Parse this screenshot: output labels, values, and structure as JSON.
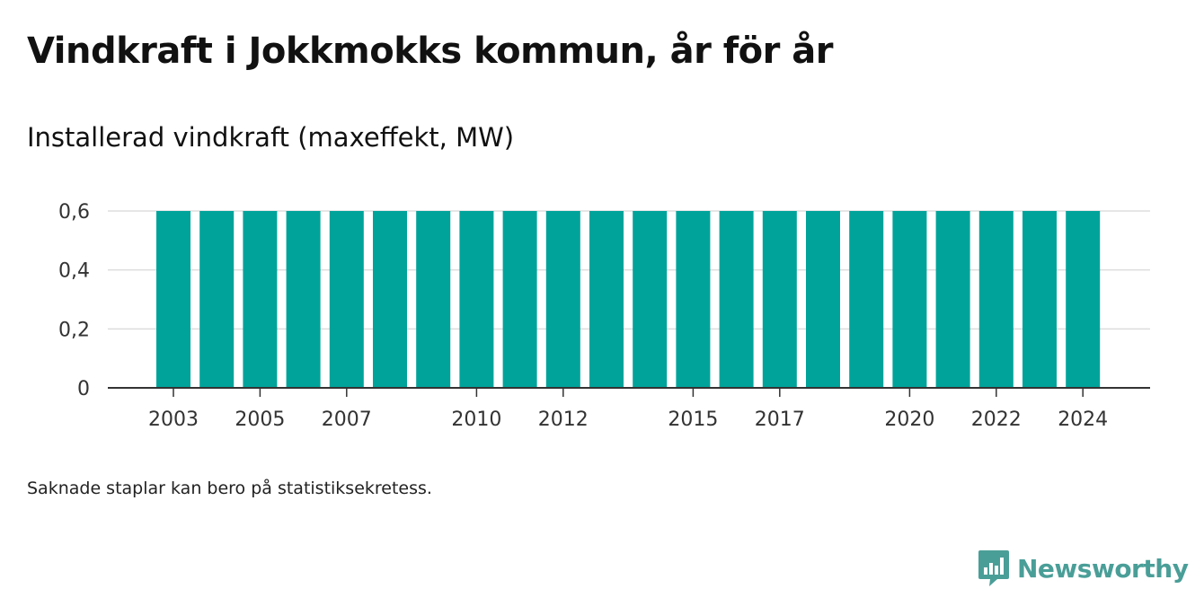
{
  "title": "Vindkraft i Jokkmokks kommun, år för år",
  "subtitle": "Installerad vindkraft (maxeffekt, MW)",
  "footnote": "Saknade staplar kan bero på statistiksekretess.",
  "brand": {
    "name": "Newsworthy",
    "icon": "newsworthy-logo-icon",
    "color": "#4a9e98"
  },
  "chart_data": {
    "type": "bar",
    "categories": [
      "2003",
      "2004",
      "2005",
      "2006",
      "2007",
      "2008",
      "2009",
      "2010",
      "2011",
      "2012",
      "2013",
      "2014",
      "2015",
      "2016",
      "2017",
      "2018",
      "2019",
      "2020",
      "2021",
      "2022",
      "2023",
      "2024"
    ],
    "values": [
      0.6,
      0.6,
      0.6,
      0.6,
      0.6,
      0.6,
      0.6,
      0.6,
      0.6,
      0.6,
      0.6,
      0.6,
      0.6,
      0.6,
      0.6,
      0.6,
      0.6,
      0.6,
      0.6,
      0.6,
      0.6,
      0.6
    ],
    "visible_x_ticks": [
      "2003",
      "2005",
      "2007",
      "2010",
      "2012",
      "2015",
      "2017",
      "2020",
      "2022",
      "2024"
    ],
    "y_ticks": [
      0,
      0.2,
      0.4,
      0.6
    ],
    "y_tick_labels": [
      "0",
      "0,2",
      "0,4",
      "0,6"
    ],
    "ylim": [
      0,
      0.6
    ],
    "bar_color": "#00a39a",
    "grid": true,
    "legend": "none"
  }
}
